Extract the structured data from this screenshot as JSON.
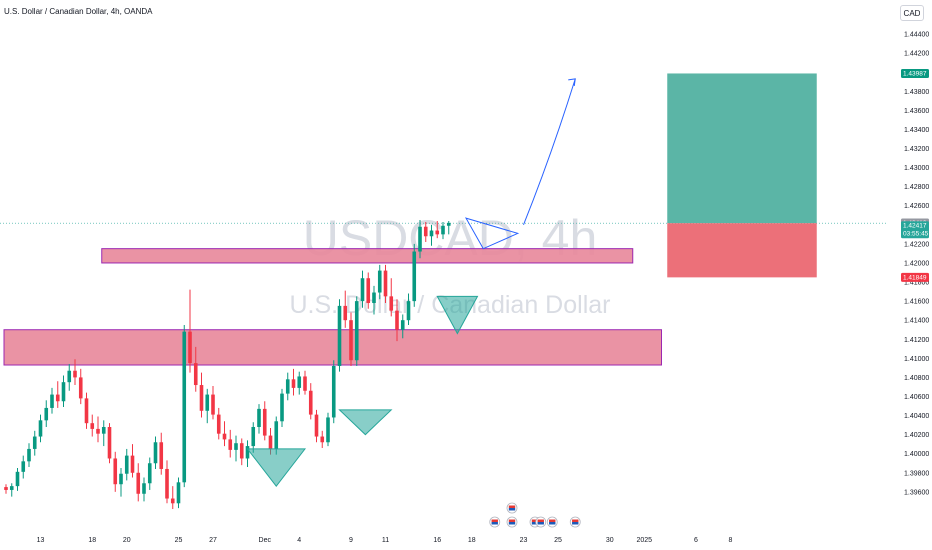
{
  "header": {
    "title": "U.S. Dollar / Canadian Dollar, 4h, OANDA",
    "currency": "CAD"
  },
  "watermark": {
    "symbol": "USDCAD, 4h",
    "name": "U.S. Dollar / Canadian Dollar"
  },
  "colors": {
    "up": "#26a69a",
    "up_fill": "#089981",
    "down": "#f23645",
    "zone_fill": "#e8879a",
    "zone_border": "#9c27b0",
    "target_fill": "#5bb5a6",
    "stop_fill": "#ec7079",
    "pattern": "#26a69a",
    "arrow": "#2962ff"
  },
  "chart_data": {
    "type": "candlestick",
    "y_axis": {
      "min": 1.392,
      "max": 1.446,
      "ticks": [
        "1.44400",
        "1.44200",
        "1.43800",
        "1.43600",
        "1.43400",
        "1.43200",
        "1.43000",
        "1.42800",
        "1.42600",
        "1.42200",
        "1.42000",
        "1.41800",
        "1.41600",
        "1.41400",
        "1.41200",
        "1.41000",
        "1.40800",
        "1.40600",
        "1.40400",
        "1.40200",
        "1.40000",
        "1.39800",
        "1.39600"
      ]
    },
    "x_axis": {
      "ticks": [
        {
          "label": "13",
          "bar": 6
        },
        {
          "label": "18",
          "bar": 15
        },
        {
          "label": "20",
          "bar": 21
        },
        {
          "label": "25",
          "bar": 30
        },
        {
          "label": "27",
          "bar": 36
        },
        {
          "label": "Dec",
          "bar": 45
        },
        {
          "label": "4",
          "bar": 51
        },
        {
          "label": "9",
          "bar": 60
        },
        {
          "label": "11",
          "bar": 66
        },
        {
          "label": "16",
          "bar": 75
        },
        {
          "label": "18",
          "bar": 81
        },
        {
          "label": "23",
          "bar": 90
        },
        {
          "label": "25",
          "bar": 96
        },
        {
          "label": "30",
          "bar": 105
        },
        {
          "label": "2025",
          "bar": 111
        },
        {
          "label": "6",
          "bar": 120
        },
        {
          "label": "8",
          "bar": 126
        }
      ]
    },
    "price_tags": [
      {
        "value": "1.43987",
        "price": 1.43987,
        "kind": "target"
      },
      {
        "value": "1.42419",
        "price": 1.42419,
        "kind": "high"
      },
      {
        "value": "1.42417",
        "price": 1.42417,
        "kind": "last"
      },
      {
        "value": "1.41849",
        "price": 1.41849,
        "kind": "stop"
      }
    ],
    "countdown": "03:55:45",
    "ohlc": [
      [
        1.3965,
        1.3968,
        1.3958,
        1.3962
      ],
      [
        1.3962,
        1.3969,
        1.3955,
        1.3966
      ],
      [
        1.3966,
        1.3985,
        1.3961,
        1.3981
      ],
      [
        1.3981,
        1.3998,
        1.3974,
        1.3992
      ],
      [
        1.3992,
        1.4011,
        1.3986,
        1.4005
      ],
      [
        1.4005,
        1.4024,
        1.3998,
        1.4018
      ],
      [
        1.4018,
        1.4041,
        1.4012,
        1.4035
      ],
      [
        1.4035,
        1.4056,
        1.4028,
        1.4048
      ],
      [
        1.4048,
        1.4069,
        1.4042,
        1.4062
      ],
      [
        1.4062,
        1.4076,
        1.4048,
        1.4055
      ],
      [
        1.4055,
        1.4082,
        1.4049,
        1.4075
      ],
      [
        1.4075,
        1.4094,
        1.4066,
        1.4087
      ],
      [
        1.4087,
        1.4099,
        1.4072,
        1.408
      ],
      [
        1.408,
        1.4089,
        1.4052,
        1.4058
      ],
      [
        1.4058,
        1.4064,
        1.4026,
        1.4032
      ],
      [
        1.4032,
        1.4041,
        1.4018,
        1.4026
      ],
      [
        1.4026,
        1.4039,
        1.4012,
        1.4021
      ],
      [
        1.4021,
        1.4035,
        1.4008,
        1.4028
      ],
      [
        1.4028,
        1.4032,
        1.399,
        1.3995
      ],
      [
        1.3995,
        1.4002,
        1.396,
        1.3968
      ],
      [
        1.3968,
        1.3985,
        1.3955,
        1.3979
      ],
      [
        1.3979,
        1.4005,
        1.3972,
        1.3998
      ],
      [
        1.3998,
        1.401,
        1.3975,
        1.398
      ],
      [
        1.398,
        1.399,
        1.395,
        1.3958
      ],
      [
        1.3958,
        1.3975,
        1.395,
        1.3969
      ],
      [
        1.3969,
        1.3996,
        1.3962,
        1.399
      ],
      [
        1.399,
        1.4018,
        1.3984,
        1.4012
      ],
      [
        1.4012,
        1.4022,
        1.3978,
        1.3984
      ],
      [
        1.3984,
        1.3993,
        1.3948,
        1.3953
      ],
      [
        1.3953,
        1.3966,
        1.3942,
        1.3948
      ],
      [
        1.3948,
        1.3975,
        1.3943,
        1.397
      ],
      [
        1.397,
        1.4135,
        1.3965,
        1.4128
      ],
      [
        1.4128,
        1.4172,
        1.4085,
        1.4095
      ],
      [
        1.4095,
        1.4112,
        1.4065,
        1.4072
      ],
      [
        1.4072,
        1.4085,
        1.4038,
        1.4045
      ],
      [
        1.4045,
        1.4068,
        1.4032,
        1.4062
      ],
      [
        1.4062,
        1.4071,
        1.4036,
        1.4041
      ],
      [
        1.4041,
        1.4048,
        1.4015,
        1.4021
      ],
      [
        1.4021,
        1.4034,
        1.4008,
        1.4015
      ],
      [
        1.4015,
        1.4025,
        1.3996,
        1.4004
      ],
      [
        1.4004,
        1.4019,
        1.3992,
        1.4011
      ],
      [
        1.4011,
        1.4016,
        1.3988,
        1.3995
      ],
      [
        1.3995,
        1.4014,
        1.3986,
        1.4008
      ],
      [
        1.4008,
        1.4033,
        1.4001,
        1.4028
      ],
      [
        1.4028,
        1.4052,
        1.4021,
        1.4047
      ],
      [
        1.4047,
        1.4055,
        1.4014,
        1.4019
      ],
      [
        1.4019,
        1.4027,
        1.3999,
        1.4005
      ],
      [
        1.4005,
        1.4039,
        1.3999,
        1.4034
      ],
      [
        1.4034,
        1.4068,
        1.4028,
        1.4063
      ],
      [
        1.4063,
        1.4085,
        1.4056,
        1.4078
      ],
      [
        1.4078,
        1.4089,
        1.4061,
        1.4069
      ],
      [
        1.4069,
        1.4086,
        1.4062,
        1.4081
      ],
      [
        1.4081,
        1.4087,
        1.4062,
        1.4066
      ],
      [
        1.4066,
        1.4074,
        1.4036,
        1.4041
      ],
      [
        1.4041,
        1.4046,
        1.4012,
        1.4018
      ],
      [
        1.4018,
        1.4024,
        1.4006,
        1.4012
      ],
      [
        1.4012,
        1.4043,
        1.4008,
        1.4038
      ],
      [
        1.4038,
        1.4098,
        1.4032,
        1.4092
      ],
      [
        1.4092,
        1.4162,
        1.4086,
        1.4155
      ],
      [
        1.4155,
        1.4171,
        1.4132,
        1.414
      ],
      [
        1.414,
        1.4148,
        1.4092,
        1.4098
      ],
      [
        1.4098,
        1.4165,
        1.4092,
        1.416
      ],
      [
        1.416,
        1.4192,
        1.4153,
        1.4184
      ],
      [
        1.4184,
        1.419,
        1.4152,
        1.4158
      ],
      [
        1.4158,
        1.4176,
        1.4146,
        1.4169
      ],
      [
        1.4169,
        1.4198,
        1.4162,
        1.4192
      ],
      [
        1.4192,
        1.4198,
        1.4158,
        1.4165
      ],
      [
        1.4165,
        1.4184,
        1.4144,
        1.415
      ],
      [
        1.415,
        1.4162,
        1.4118,
        1.413
      ],
      [
        1.413,
        1.4146,
        1.4121,
        1.414
      ],
      [
        1.414,
        1.4168,
        1.4135,
        1.416
      ],
      [
        1.416,
        1.422,
        1.4154,
        1.4212
      ],
      [
        1.4212,
        1.4245,
        1.4205,
        1.4238
      ],
      [
        1.4238,
        1.4243,
        1.4222,
        1.4228
      ],
      [
        1.4228,
        1.424,
        1.4218,
        1.4234
      ],
      [
        1.4234,
        1.4244,
        1.4226,
        1.423
      ],
      [
        1.423,
        1.4243,
        1.4225,
        1.4239
      ],
      [
        1.4239,
        1.4244,
        1.423,
        1.4242
      ]
    ],
    "zones": [
      {
        "x0_bar": 17,
        "x1_bar": 109,
        "top": 1.4215,
        "bottom": 1.42
      },
      {
        "x0_bar": 0,
        "x1_bar": 114,
        "top": 1.413,
        "bottom": 1.4093
      }
    ],
    "position": {
      "x0_bar": 115,
      "x1_bar": 141,
      "entry": 1.42417,
      "target": 1.43987,
      "stop": 1.41849
    },
    "patterns": [
      {
        "type": "inverted-triangle",
        "points": [
          [
            42,
            1.4005
          ],
          [
            52,
            1.4005
          ],
          [
            47,
            1.3966
          ]
        ]
      },
      {
        "type": "inverted-triangle",
        "points": [
          [
            58,
            1.4046
          ],
          [
            67,
            1.4046
          ],
          [
            62.5,
            1.402
          ]
        ]
      },
      {
        "type": "inverted-triangle",
        "points": [
          [
            75,
            1.4165
          ],
          [
            82,
            1.4165
          ],
          [
            78.5,
            1.4126
          ]
        ]
      },
      {
        "type": "pennant",
        "points": [
          [
            80,
            1.4247
          ],
          [
            89,
            1.4231
          ],
          [
            83,
            1.4215
          ]
        ]
      }
    ],
    "arrow": {
      "from": [
        90,
        1.424
      ],
      "to": [
        99,
        1.4393
      ]
    },
    "events": [
      {
        "bar": 88,
        "row": 2
      },
      {
        "bar": 85,
        "row": 1
      },
      {
        "bar": 88,
        "row": 1
      },
      {
        "bar": 92,
        "row": 1
      },
      {
        "bar": 93,
        "row": 1
      },
      {
        "bar": 95,
        "row": 1
      },
      {
        "bar": 99,
        "row": 1
      }
    ]
  }
}
